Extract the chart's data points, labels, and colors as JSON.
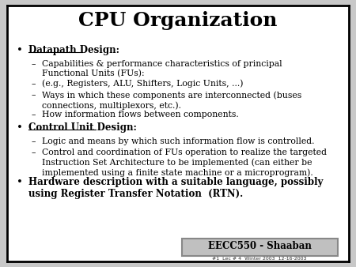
{
  "title": "CPU Organization",
  "background_color": "#c8c8c8",
  "slide_bg": "#ffffff",
  "border_color": "#000000",
  "title_fontsize": 18,
  "footer_label": "EECC550 - Shaaban",
  "footer_sub": "#1  Lec # 4  Winter 2003  12-16-2003",
  "content": [
    {
      "text": "Datapath Design:",
      "underline": true,
      "bold": true,
      "indent": 0
    },
    {
      "text": "Capabilities & performance characteristics of principal\nFunctional Units (FUs):",
      "underline": false,
      "bold": false,
      "indent": 1
    },
    {
      "text": "(e.g., Registers, ALU, Shifters, Logic Units, ...)",
      "underline": false,
      "bold": false,
      "indent": 1
    },
    {
      "text": "Ways in which these components are interconnected (buses\nconnections, multiplexors, etc.).",
      "underline": false,
      "bold": false,
      "indent": 1
    },
    {
      "text": "How information flows between components.",
      "underline": false,
      "bold": false,
      "indent": 1
    },
    {
      "text": "Control Unit Design:",
      "underline": true,
      "bold": true,
      "indent": 0
    },
    {
      "text": "Logic and means by which such information flow is controlled.",
      "underline": false,
      "bold": false,
      "indent": 1
    },
    {
      "text": "Control and coordination of FUs operation to realize the targeted\nInstruction Set Architecture to be implemented (can either be\nimplemented using a finite state machine or a microprogram).",
      "underline": false,
      "bold": false,
      "indent": 1
    },
    {
      "text": "Hardware description with a suitable language, possibly\nusing Register Transfer Notation  (RTN).",
      "underline": false,
      "bold": true,
      "indent": 0
    }
  ]
}
